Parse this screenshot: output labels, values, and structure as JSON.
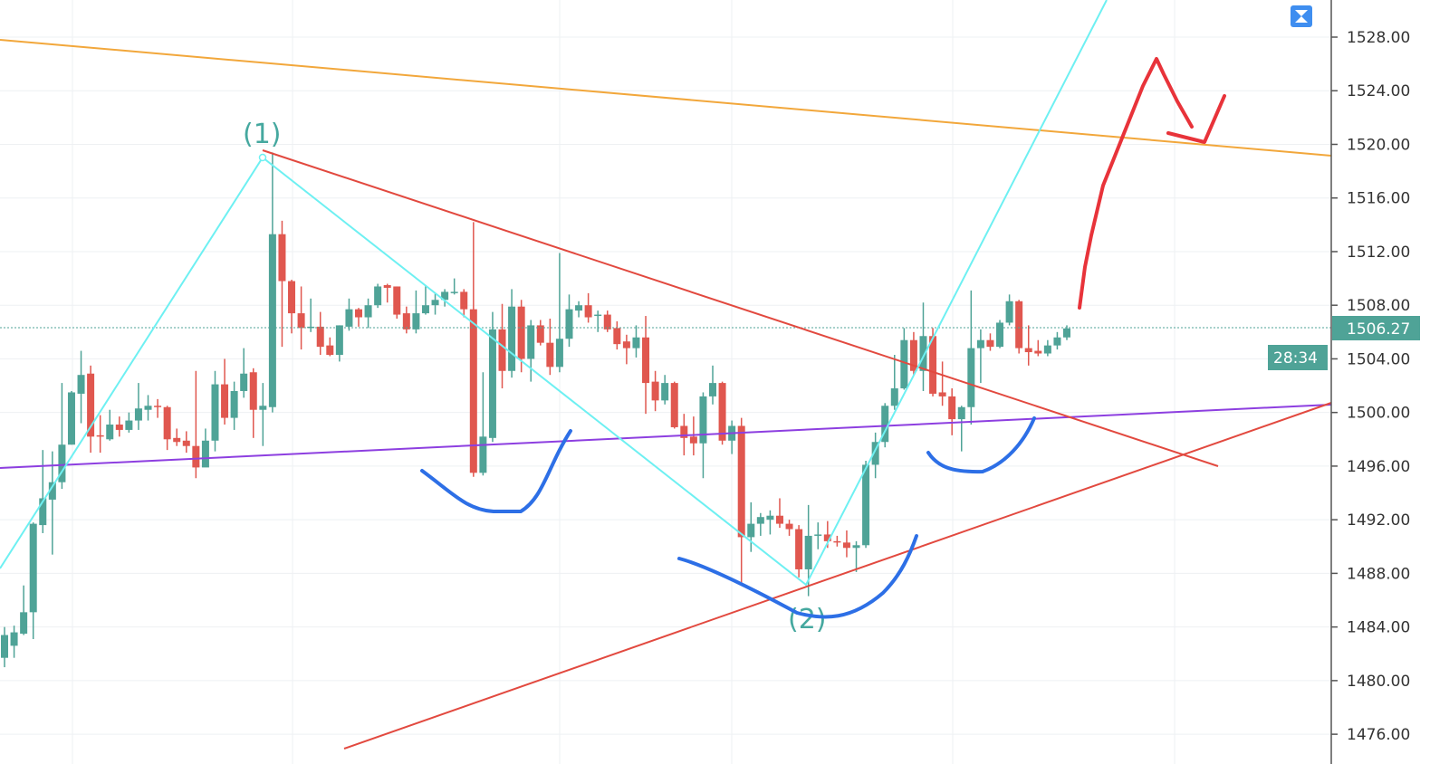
{
  "chart_data": {
    "type": "candlestick",
    "ylim": [
      1474,
      1531
    ],
    "y_ticks": [
      "1528.00",
      "1524.00",
      "1520.00",
      "1516.00",
      "1512.00",
      "1508.00",
      "1504.00",
      "1500.00",
      "1496.00",
      "1492.00",
      "1488.00",
      "1484.00",
      "1480.00",
      "1476.00"
    ],
    "grid": true,
    "current_price": "1506.27",
    "countdown": "28:34",
    "wave_labels": [
      "(1)",
      "(2)"
    ],
    "colors": {
      "up": "#4fa397",
      "down": "#e0574f",
      "trend_orange": "#f2a73b",
      "trend_purple": "#8d3fe0",
      "trend_red": "#e2493f",
      "wave_cyan": "#6ef0f2",
      "marker_blue": "#2d6fe6",
      "marker_red": "#e8333a",
      "price_tag": "#4fa397"
    },
    "candles": [
      [
        1481.7,
        1484.0,
        1481.0,
        1483.4
      ],
      [
        1482.6,
        1484.1,
        1481.7,
        1483.6
      ],
      [
        1483.5,
        1487.1,
        1483.4,
        1485.1
      ],
      [
        1485.1,
        1491.8,
        1483.1,
        1491.7
      ],
      [
        1491.6,
        1497.2,
        1491.0,
        1493.6
      ],
      [
        1493.5,
        1497.1,
        1489.4,
        1494.8
      ],
      [
        1494.8,
        1502.2,
        1494.3,
        1497.6
      ],
      [
        1497.6,
        1501.6,
        1497.6,
        1501.5
      ],
      [
        1501.4,
        1504.6,
        1499.2,
        1502.8
      ],
      [
        1502.9,
        1503.5,
        1497.0,
        1498.2
      ],
      [
        1498.3,
        1499.8,
        1497.0,
        1498.2
      ],
      [
        1498.0,
        1500.2,
        1497.9,
        1499.1
      ],
      [
        1499.1,
        1499.7,
        1498.2,
        1498.7
      ],
      [
        1498.7,
        1500.0,
        1498.5,
        1499.4
      ],
      [
        1499.4,
        1502.2,
        1498.7,
        1500.3
      ],
      [
        1500.2,
        1501.3,
        1499.4,
        1500.5
      ],
      [
        1500.5,
        1501.0,
        1499.6,
        1500.4
      ],
      [
        1500.4,
        1500.5,
        1497.2,
        1498.0
      ],
      [
        1498.1,
        1498.8,
        1497.5,
        1497.8
      ],
      [
        1497.9,
        1498.6,
        1497.0,
        1497.5
      ],
      [
        1497.5,
        1503.1,
        1495.1,
        1495.9
      ],
      [
        1495.9,
        1498.8,
        1496.0,
        1497.9
      ],
      [
        1497.9,
        1503.1,
        1497.1,
        1502.1
      ],
      [
        1502.1,
        1504.0,
        1499.1,
        1499.6
      ],
      [
        1499.6,
        1502.3,
        1498.7,
        1501.6
      ],
      [
        1501.6,
        1504.8,
        1501.1,
        1502.9
      ],
      [
        1503.0,
        1503.3,
        1498.1,
        1500.2
      ],
      [
        1500.2,
        1502.2,
        1497.5,
        1500.5
      ],
      [
        1500.4,
        1519.4,
        1500.0,
        1513.3
      ],
      [
        1513.3,
        1514.3,
        1504.9,
        1509.8
      ],
      [
        1509.8,
        1509.9,
        1505.9,
        1507.4
      ],
      [
        1507.4,
        1509.4,
        1504.7,
        1506.3
      ],
      [
        1506.3,
        1508.5,
        1506.0,
        1506.4
      ],
      [
        1506.4,
        1507.5,
        1504.3,
        1504.9
      ],
      [
        1505.0,
        1505.6,
        1504.2,
        1504.3
      ],
      [
        1504.3,
        1506.5,
        1503.8,
        1506.5
      ],
      [
        1506.4,
        1508.5,
        1506.1,
        1507.7
      ],
      [
        1507.7,
        1507.8,
        1506.4,
        1507.1
      ],
      [
        1507.1,
        1508.5,
        1506.3,
        1508.0
      ],
      [
        1508.0,
        1509.6,
        1507.8,
        1509.4
      ],
      [
        1509.5,
        1509.6,
        1508.2,
        1509.3
      ],
      [
        1509.4,
        1509.4,
        1507.0,
        1507.3
      ],
      [
        1507.4,
        1507.9,
        1505.9,
        1506.2
      ],
      [
        1506.2,
        1509.1,
        1505.9,
        1507.4
      ],
      [
        1507.4,
        1509.5,
        1507.3,
        1508.0
      ],
      [
        1508.0,
        1508.9,
        1507.3,
        1508.4
      ],
      [
        1508.4,
        1509.2,
        1507.9,
        1509.0
      ],
      [
        1508.9,
        1510.0,
        1508.8,
        1509.0
      ],
      [
        1509.0,
        1509.2,
        1507.1,
        1507.7
      ],
      [
        1507.7,
        1514.2,
        1495.2,
        1495.5
      ],
      [
        1495.5,
        1503.0,
        1495.3,
        1498.2
      ],
      [
        1498.1,
        1507.5,
        1497.8,
        1506.2
      ],
      [
        1506.2,
        1508.1,
        1501.8,
        1503.1
      ],
      [
        1503.1,
        1509.2,
        1502.6,
        1507.9
      ],
      [
        1507.9,
        1508.4,
        1503.0,
        1504.0
      ],
      [
        1504.0,
        1506.9,
        1502.3,
        1506.5
      ],
      [
        1506.5,
        1506.9,
        1505.0,
        1505.2
      ],
      [
        1505.2,
        1507.0,
        1502.8,
        1503.4
      ],
      [
        1503.4,
        1511.9,
        1503.0,
        1505.5
      ],
      [
        1505.5,
        1508.8,
        1504.9,
        1507.7
      ],
      [
        1507.6,
        1508.3,
        1507.1,
        1508.0
      ],
      [
        1508.0,
        1508.9,
        1506.7,
        1507.1
      ],
      [
        1507.2,
        1507.6,
        1506.0,
        1507.3
      ],
      [
        1507.3,
        1507.6,
        1506.0,
        1506.2
      ],
      [
        1506.3,
        1506.8,
        1504.7,
        1505.1
      ],
      [
        1505.3,
        1505.8,
        1503.6,
        1504.8
      ],
      [
        1504.8,
        1506.5,
        1504.1,
        1505.6
      ],
      [
        1505.6,
        1507.2,
        1499.9,
        1502.2
      ],
      [
        1502.3,
        1503.1,
        1500.1,
        1500.9
      ],
      [
        1500.9,
        1502.8,
        1500.6,
        1502.2
      ],
      [
        1502.2,
        1502.3,
        1498.8,
        1498.9
      ],
      [
        1499.0,
        1499.9,
        1496.8,
        1498.1
      ],
      [
        1498.2,
        1499.7,
        1496.8,
        1497.7
      ],
      [
        1497.7,
        1501.5,
        1495.1,
        1501.2
      ],
      [
        1501.2,
        1503.5,
        1500.6,
        1502.2
      ],
      [
        1502.2,
        1502.3,
        1497.6,
        1497.9
      ],
      [
        1497.9,
        1499.4,
        1496.9,
        1499.0
      ],
      [
        1499.0,
        1499.6,
        1487.3,
        1490.7
      ],
      [
        1490.7,
        1493.3,
        1489.6,
        1491.7
      ],
      [
        1491.7,
        1492.5,
        1490.8,
        1492.2
      ],
      [
        1492.0,
        1492.7,
        1490.9,
        1492.3
      ],
      [
        1492.3,
        1493.6,
        1491.4,
        1491.7
      ],
      [
        1491.7,
        1492.0,
        1490.8,
        1491.3
      ],
      [
        1491.3,
        1491.6,
        1487.7,
        1488.3
      ],
      [
        1488.3,
        1493.1,
        1486.3,
        1490.8
      ],
      [
        1490.8,
        1491.8,
        1489.8,
        1490.9
      ],
      [
        1490.9,
        1491.9,
        1489.9,
        1490.4
      ],
      [
        1490.4,
        1490.8,
        1490.0,
        1490.3
      ],
      [
        1490.3,
        1491.2,
        1489.2,
        1489.9
      ],
      [
        1489.9,
        1490.4,
        1488.1,
        1490.1
      ],
      [
        1490.1,
        1496.4,
        1489.9,
        1496.1
      ],
      [
        1496.1,
        1498.5,
        1495.1,
        1497.8
      ],
      [
        1497.8,
        1500.7,
        1497.4,
        1500.5
      ],
      [
        1500.5,
        1504.3,
        1500.2,
        1501.8
      ],
      [
        1501.8,
        1506.3,
        1501.7,
        1505.4
      ],
      [
        1505.4,
        1506.0,
        1502.8,
        1503.1
      ],
      [
        1503.1,
        1508.2,
        1501.6,
        1505.7
      ],
      [
        1505.7,
        1506.3,
        1501.2,
        1501.4
      ],
      [
        1501.5,
        1503.8,
        1500.5,
        1501.2
      ],
      [
        1501.2,
        1501.8,
        1498.3,
        1499.5
      ],
      [
        1499.5,
        1500.5,
        1497.1,
        1500.4
      ],
      [
        1500.4,
        1509.1,
        1499.1,
        1504.8
      ],
      [
        1504.8,
        1506.2,
        1502.2,
        1505.4
      ],
      [
        1505.4,
        1505.9,
        1504.6,
        1504.9
      ],
      [
        1504.9,
        1506.9,
        1504.8,
        1506.7
      ],
      [
        1506.7,
        1508.8,
        1506.5,
        1508.3
      ],
      [
        1508.3,
        1508.4,
        1504.4,
        1504.8
      ],
      [
        1504.8,
        1506.5,
        1503.5,
        1504.5
      ],
      [
        1504.6,
        1505.4,
        1504.2,
        1504.4
      ],
      [
        1504.4,
        1505.4,
        1504.2,
        1505.0
      ],
      [
        1505.0,
        1506.0,
        1504.7,
        1505.6
      ],
      [
        1505.6,
        1506.5,
        1505.4,
        1506.27
      ]
    ]
  },
  "toolbar": {
    "icon": "hourglass-icon"
  }
}
